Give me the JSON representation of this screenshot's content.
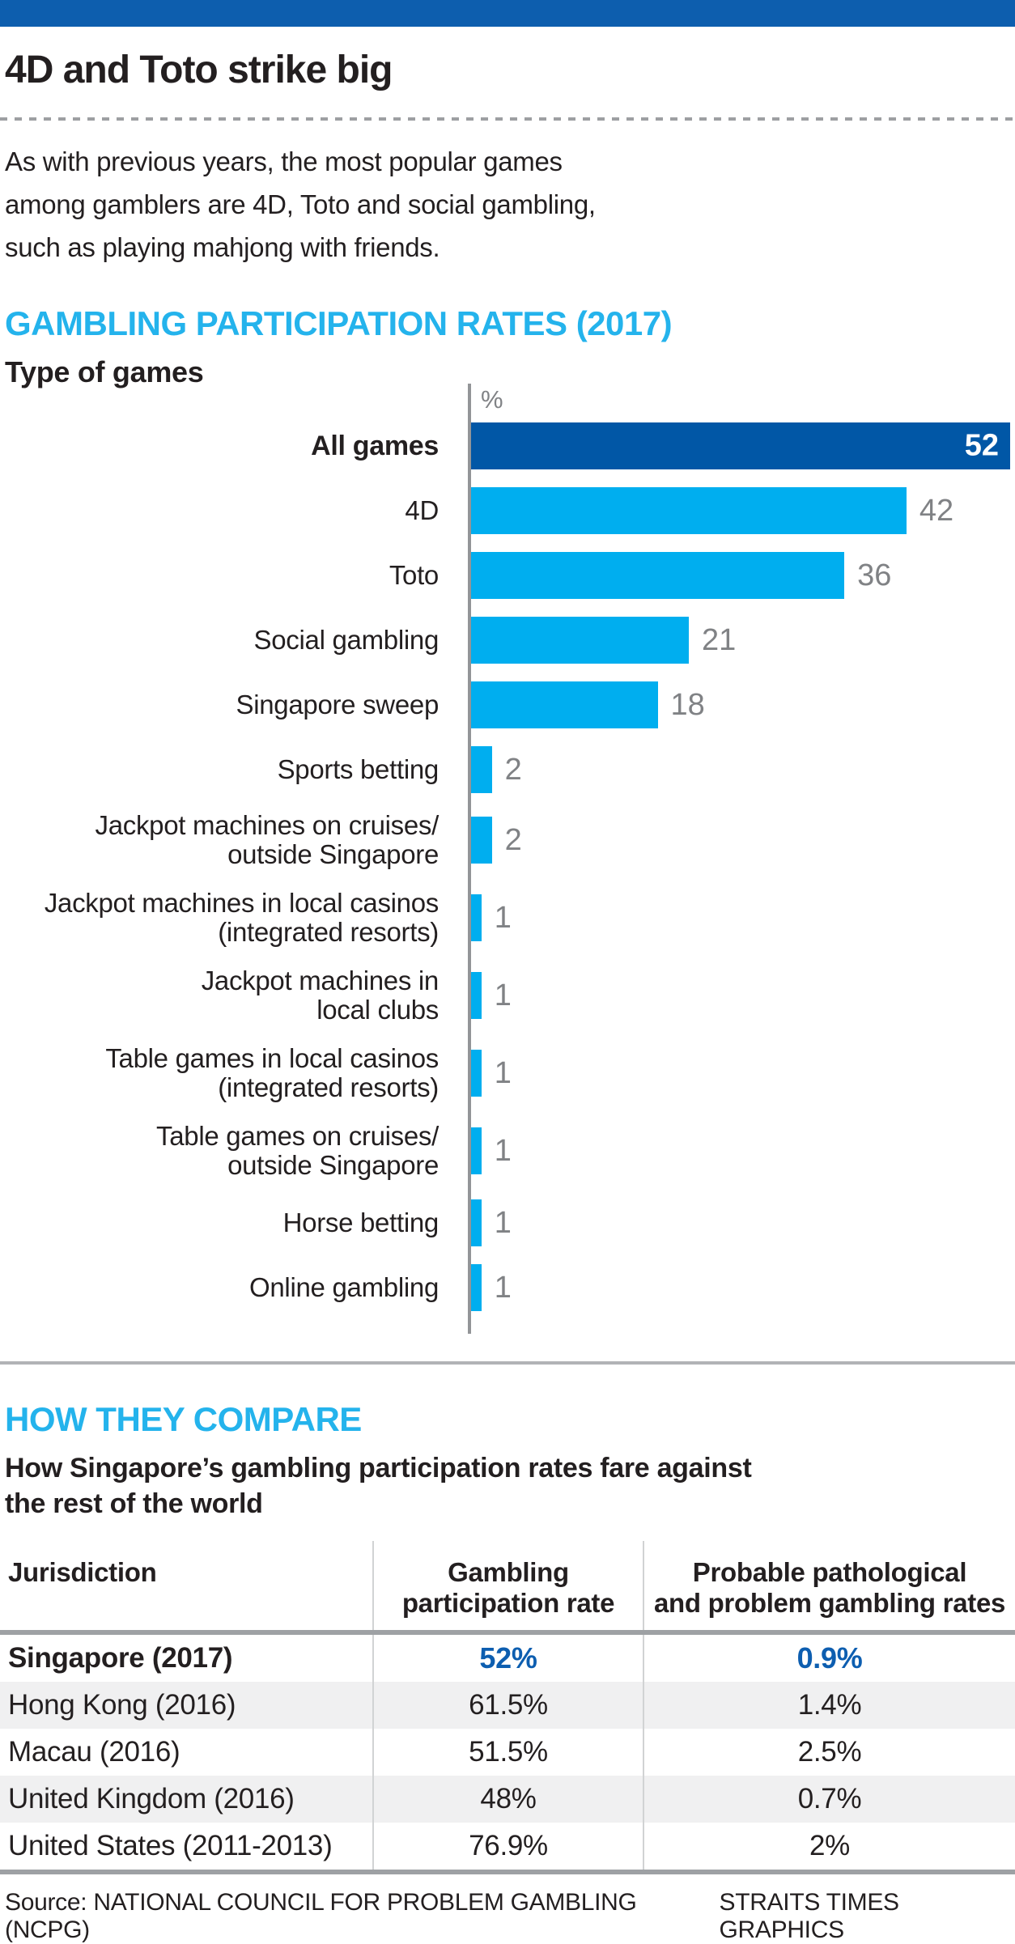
{
  "colors": {
    "banner_blue": "#0d5eae",
    "bar_dark_blue": "#0157a6",
    "bar_light_blue": "#00aeef",
    "heading_cyan": "#24b3ec",
    "value_gray": "#808285",
    "table_value_blue": "#0d5eb0",
    "shaded_row": "#f0f0f1",
    "text": "#231f20"
  },
  "header": {
    "title": "4D and Toto strike big",
    "intro_lines": [
      "As with previous years, the most popular games",
      "among gamblers are 4D, Toto and social gambling,",
      "such as playing mahjong with friends."
    ]
  },
  "participation": {
    "heading": "GAMBLING PARTICIPATION RATES (2017)",
    "axis_title": "Type of games",
    "unit_label": "%",
    "max_value": 52,
    "bars": [
      {
        "label_lines": [
          "All games"
        ],
        "value": 52,
        "emphasis": true
      },
      {
        "label_lines": [
          "4D"
        ],
        "value": 42,
        "emphasis": false
      },
      {
        "label_lines": [
          "Toto"
        ],
        "value": 36,
        "emphasis": false
      },
      {
        "label_lines": [
          "Social gambling"
        ],
        "value": 21,
        "emphasis": false
      },
      {
        "label_lines": [
          "Singapore sweep"
        ],
        "value": 18,
        "emphasis": false
      },
      {
        "label_lines": [
          "Sports betting"
        ],
        "value": 2,
        "emphasis": false
      },
      {
        "label_lines": [
          "Jackpot machines on cruises/",
          "outside Singapore"
        ],
        "value": 2,
        "emphasis": false
      },
      {
        "label_lines": [
          "Jackpot machines in local casinos",
          "(integrated resorts)"
        ],
        "value": 1,
        "emphasis": false
      },
      {
        "label_lines": [
          "Jackpot machines in",
          "local clubs"
        ],
        "value": 1,
        "emphasis": false
      },
      {
        "label_lines": [
          "Table games in local casinos",
          "(integrated resorts)"
        ],
        "value": 1,
        "emphasis": false
      },
      {
        "label_lines": [
          "Table games on cruises/",
          "outside Singapore"
        ],
        "value": 1,
        "emphasis": false
      },
      {
        "label_lines": [
          "Horse betting"
        ],
        "value": 1,
        "emphasis": false
      },
      {
        "label_lines": [
          "Online gambling"
        ],
        "value": 1,
        "emphasis": false
      }
    ]
  },
  "compare": {
    "heading": "HOW THEY COMPARE",
    "subtitle_lines": [
      "How Singapore’s gambling participation rates fare against",
      "the rest of the world"
    ],
    "table": {
      "columns": [
        {
          "label_lines": [
            "Jurisdiction"
          ]
        },
        {
          "label_lines": [
            "Gambling",
            "participation rate"
          ]
        },
        {
          "label_lines": [
            "Probable pathological",
            "and problem gambling rates"
          ]
        }
      ],
      "rows": [
        {
          "jurisdiction": "Singapore (2017)",
          "participation": "52%",
          "problem": "0.9%",
          "highlight": true,
          "shaded": false
        },
        {
          "jurisdiction": "Hong Kong (2016)",
          "participation": "61.5%",
          "problem": "1.4%",
          "highlight": false,
          "shaded": true
        },
        {
          "jurisdiction": "Macau (2016)",
          "participation": "51.5%",
          "problem": "2.5%",
          "highlight": false,
          "shaded": false
        },
        {
          "jurisdiction": "United Kingdom (2016)",
          "participation": "48%",
          "problem": "0.7%",
          "highlight": false,
          "shaded": true
        },
        {
          "jurisdiction": "United States (2011-2013)",
          "participation": "76.9%",
          "problem": "2%",
          "highlight": false,
          "shaded": false
        }
      ]
    }
  },
  "footer": {
    "source": "Source: NATIONAL COUNCIL FOR PROBLEM GAMBLING (NCPG)",
    "credit": "STRAITS TIMES GRAPHICS"
  },
  "chart_data": [
    {
      "type": "bar",
      "orientation": "horizontal",
      "title": "GAMBLING PARTICIPATION RATES (2017)",
      "xlabel": "%",
      "ylabel": "Type of games",
      "xlim": [
        0,
        52
      ],
      "grid": false,
      "categories": [
        "All games",
        "4D",
        "Toto",
        "Social gambling",
        "Singapore sweep",
        "Sports betting",
        "Jackpot machines on cruises/outside Singapore",
        "Jackpot machines in local casinos (integrated resorts)",
        "Jackpot machines in local clubs",
        "Table games in local casinos (integrated resorts)",
        "Table games on cruises/outside Singapore",
        "Horse betting",
        "Online gambling"
      ],
      "values": [
        52,
        42,
        36,
        21,
        18,
        2,
        2,
        1,
        1,
        1,
        1,
        1,
        1
      ],
      "highlight_category": "All games",
      "bar_color_default": "#00aeef",
      "bar_color_highlight": "#0157a6"
    },
    {
      "type": "table",
      "title": "HOW THEY COMPARE",
      "columns": [
        "Jurisdiction",
        "Gambling participation rate",
        "Probable pathological and problem gambling rates"
      ],
      "rows": [
        [
          "Singapore (2017)",
          "52%",
          "0.9%"
        ],
        [
          "Hong Kong (2016)",
          "61.5%",
          "1.4%"
        ],
        [
          "Macau (2016)",
          "51.5%",
          "2.5%"
        ],
        [
          "United Kingdom (2016)",
          "48%",
          "0.7%"
        ],
        [
          "United States (2011-2013)",
          "76.9%",
          "2%"
        ]
      ]
    }
  ]
}
